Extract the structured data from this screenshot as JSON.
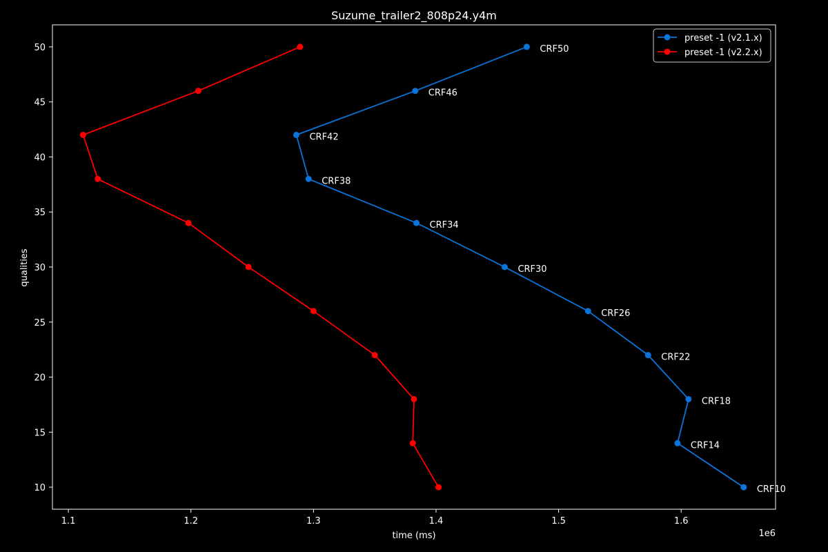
{
  "chart_data": {
    "type": "line",
    "title": "Suzume_trailer2_808p24.y4m",
    "xlabel": "time (ms)",
    "ylabel": "qualities",
    "x_offset_label": "1e6",
    "xlim": [
      1.087,
      1.677
    ],
    "ylim": [
      8,
      52
    ],
    "xticks": [
      1.1,
      1.2,
      1.3,
      1.4,
      1.5,
      1.6
    ],
    "xtick_labels": [
      "1.1",
      "1.2",
      "1.3",
      "1.4",
      "1.5",
      "1.6"
    ],
    "yticks": [
      10,
      15,
      20,
      25,
      30,
      35,
      40,
      45,
      50
    ],
    "ytick_labels": [
      "10",
      "15",
      "20",
      "25",
      "30",
      "35",
      "40",
      "45",
      "50"
    ],
    "grid": false,
    "legend_position": "top-right",
    "series": [
      {
        "name": "preset -1 (v2.1.x)",
        "color": "#0a74da",
        "x": [
          1.474,
          1.383,
          1.286,
          1.296,
          1.384,
          1.456,
          1.524,
          1.573,
          1.606,
          1.597,
          1.651
        ],
        "y": [
          50,
          46,
          42,
          38,
          34,
          30,
          26,
          22,
          18,
          14,
          10
        ],
        "point_labels": [
          "CRF50",
          "CRF46",
          "CRF42",
          "CRF38",
          "CRF34",
          "CRF30",
          "CRF26",
          "CRF22",
          "CRF18",
          "CRF14",
          "CRF10"
        ]
      },
      {
        "name": "preset -1 (v2.2.x)",
        "color": "#ff0000",
        "x": [
          1.289,
          1.206,
          1.112,
          1.124,
          1.198,
          1.247,
          1.3,
          1.35,
          1.382,
          1.381,
          1.402
        ],
        "y": [
          50,
          46,
          42,
          38,
          34,
          30,
          26,
          22,
          18,
          14,
          10
        ]
      }
    ]
  }
}
